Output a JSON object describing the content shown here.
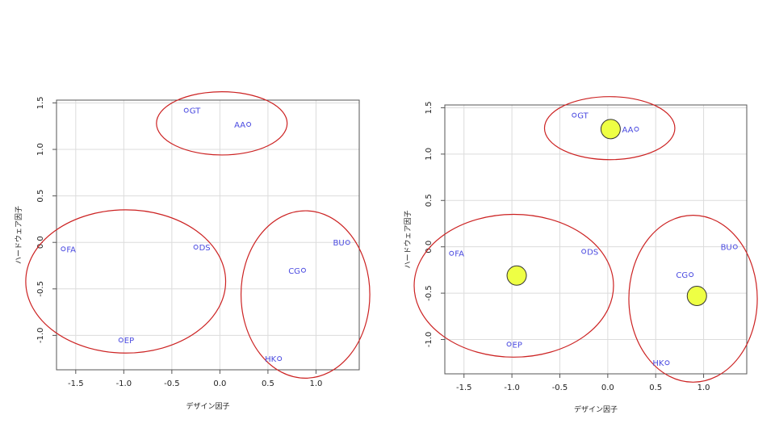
{
  "colors": {
    "point": "#4a4ae0",
    "cluster": "#cc2222",
    "centroid_fill": "#eeff44",
    "centroid_stroke": "#333333",
    "grid": "#dcdcdc",
    "frame": "#555555"
  },
  "chart_data": [
    {
      "type": "scatter",
      "xlabel": "デザイン因子",
      "ylabel": "ハードウェア因子",
      "xlim": [
        -1.7,
        1.45
      ],
      "ylim": [
        -1.37,
        1.53
      ],
      "x_ticks": [
        -1.5,
        -1.0,
        -0.5,
        0.0,
        0.5,
        1.0
      ],
      "x_tick_labels": [
        "-1.5",
        "-1.0",
        "-0.5",
        "0.0",
        "0.5",
        "1.0"
      ],
      "y_ticks": [
        -1.0,
        -0.5,
        0.0,
        0.5,
        1.0,
        1.5
      ],
      "y_tick_labels": [
        "-1.0",
        "-0.5",
        "0.0",
        "0.5",
        "1.0",
        "1.5"
      ],
      "grid": true,
      "points": [
        {
          "label": "GT",
          "x": -0.35,
          "y": 1.42,
          "side": "right"
        },
        {
          "label": "AA",
          "x": 0.3,
          "y": 1.27,
          "side": "left"
        },
        {
          "label": "FA",
          "x": -1.63,
          "y": -0.07,
          "side": "right"
        },
        {
          "label": "DS",
          "x": -0.25,
          "y": -0.05,
          "side": "right"
        },
        {
          "label": "BU",
          "x": 1.33,
          "y": 0.0,
          "side": "left"
        },
        {
          "label": "CG",
          "x": 0.87,
          "y": -0.3,
          "side": "left"
        },
        {
          "label": "EP",
          "x": -1.03,
          "y": -1.05,
          "side": "right"
        },
        {
          "label": "HK",
          "x": 0.62,
          "y": -1.25,
          "side": "left"
        }
      ],
      "clusters": [
        {
          "cx": 0.02,
          "cy": 1.28,
          "rx": 0.68,
          "ry": 0.34
        },
        {
          "cx": -0.98,
          "cy": -0.42,
          "rx": 1.04,
          "ry": 0.77
        },
        {
          "cx": 0.89,
          "cy": -0.56,
          "rx": 0.67,
          "ry": 0.9
        }
      ],
      "centroids": []
    },
    {
      "type": "scatter",
      "xlabel": "デザイン因子",
      "ylabel": "ハードウェア因子",
      "xlim": [
        -1.7,
        1.45
      ],
      "ylim": [
        -1.37,
        1.53
      ],
      "x_ticks": [
        -1.5,
        -1.0,
        -0.5,
        0.0,
        0.5,
        1.0
      ],
      "x_tick_labels": [
        "-1.5",
        "-1.0",
        "-0.5",
        "0.0",
        "0.5",
        "1.0"
      ],
      "y_ticks": [
        -1.0,
        -0.5,
        0.0,
        0.5,
        1.0,
        1.5
      ],
      "y_tick_labels": [
        "-1.0",
        "-0.5",
        "0.0",
        "0.5",
        "1.0",
        "1.5"
      ],
      "grid": true,
      "points": [
        {
          "label": "GT",
          "x": -0.35,
          "y": 1.42,
          "side": "right"
        },
        {
          "label": "AA",
          "x": 0.3,
          "y": 1.27,
          "side": "left"
        },
        {
          "label": "FA",
          "x": -1.63,
          "y": -0.07,
          "side": "right"
        },
        {
          "label": "DS",
          "x": -0.25,
          "y": -0.05,
          "side": "right"
        },
        {
          "label": "BU",
          "x": 1.33,
          "y": 0.0,
          "side": "left"
        },
        {
          "label": "CG",
          "x": 0.87,
          "y": -0.3,
          "side": "left"
        },
        {
          "label": "EP",
          "x": -1.03,
          "y": -1.05,
          "side": "right"
        },
        {
          "label": "HK",
          "x": 0.62,
          "y": -1.25,
          "side": "left"
        }
      ],
      "clusters": [
        {
          "cx": 0.02,
          "cy": 1.28,
          "rx": 0.68,
          "ry": 0.34
        },
        {
          "cx": -0.98,
          "cy": -0.42,
          "rx": 1.04,
          "ry": 0.77
        },
        {
          "cx": 0.89,
          "cy": -0.56,
          "rx": 0.67,
          "ry": 0.9
        }
      ],
      "centroids": [
        {
          "x": 0.03,
          "y": 1.27
        },
        {
          "x": -0.95,
          "y": -0.31
        },
        {
          "x": 0.93,
          "y": -0.53
        }
      ]
    }
  ]
}
